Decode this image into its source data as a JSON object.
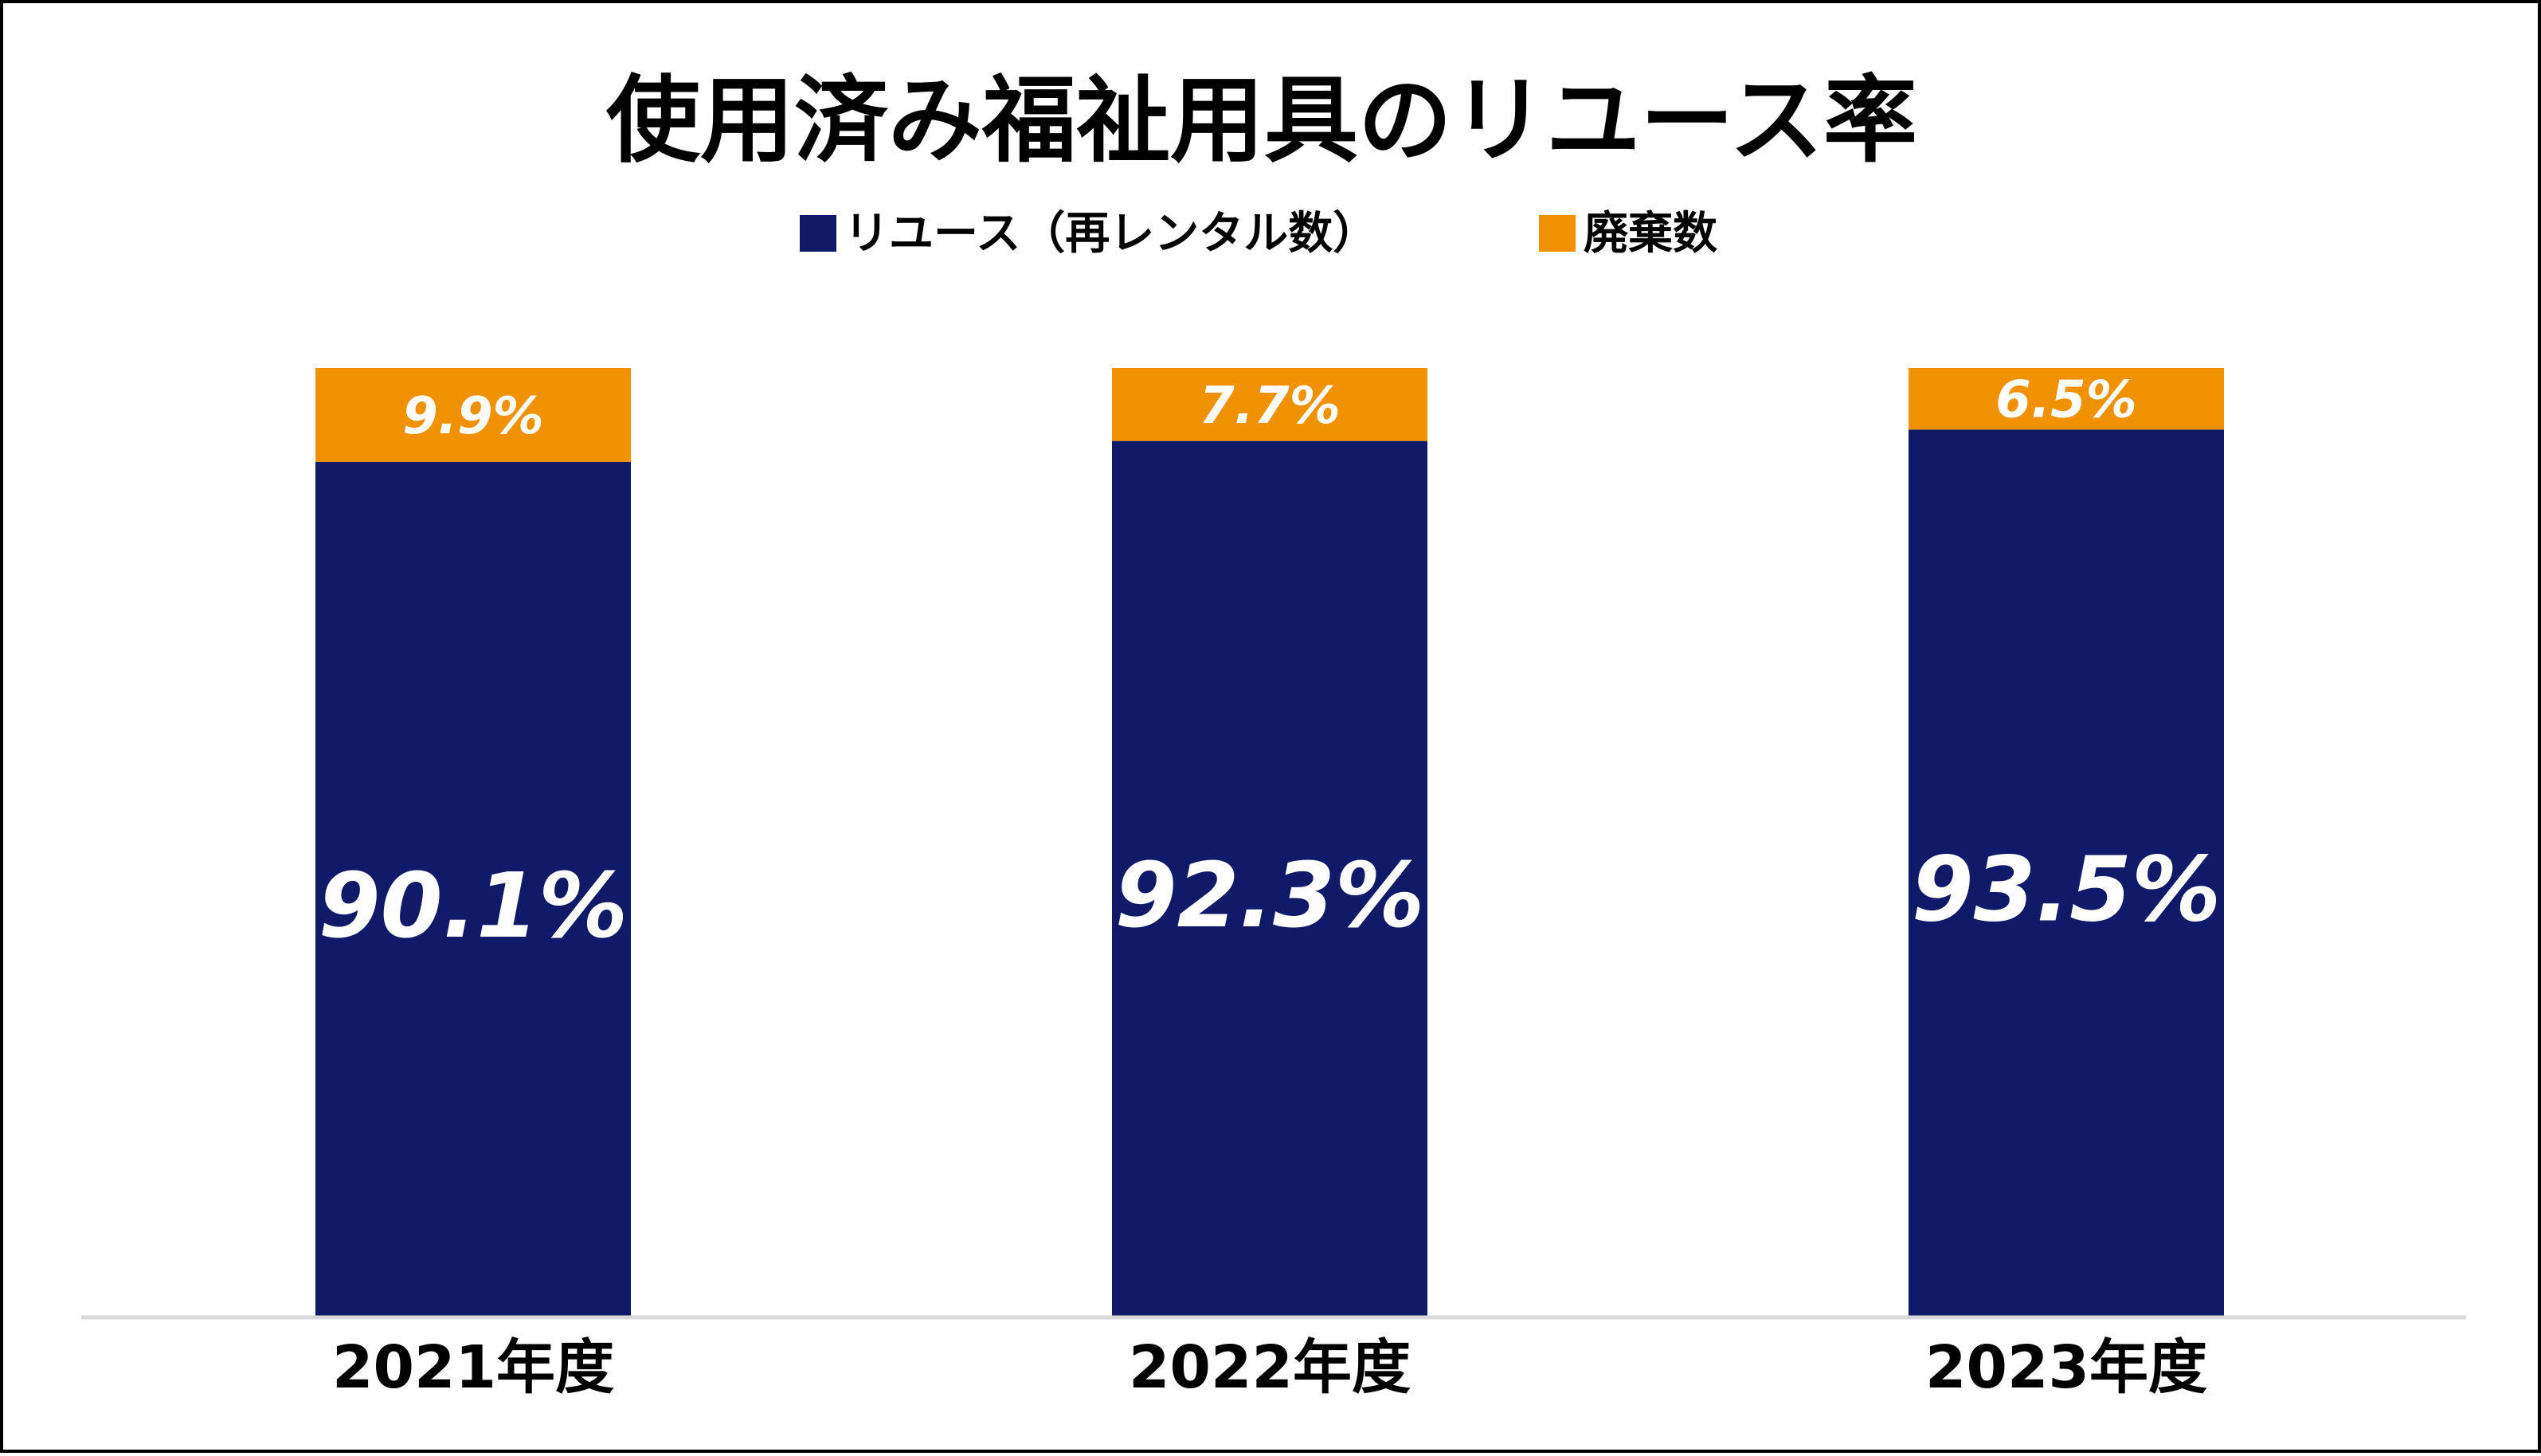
{
  "chart_data": {
    "type": "bar",
    "stacked": true,
    "title": "使用済み福祉用具のリユース率",
    "categories": [
      "2021年度",
      "2022年度",
      "2023年度"
    ],
    "series": [
      {
        "name": "リユース（再レンタル数）",
        "color": "#111a68",
        "values": [
          90.1,
          92.3,
          93.5
        ],
        "labels": [
          "90.1%",
          "92.3%",
          "93.5%"
        ]
      },
      {
        "name": "廃棄数",
        "color": "#f09100",
        "values": [
          9.9,
          7.7,
          6.5
        ],
        "labels": [
          "9.9%",
          "7.7%",
          "6.5%"
        ]
      }
    ],
    "legend": "top-center",
    "grid": false,
    "axis_color": "#d9d9d9"
  }
}
